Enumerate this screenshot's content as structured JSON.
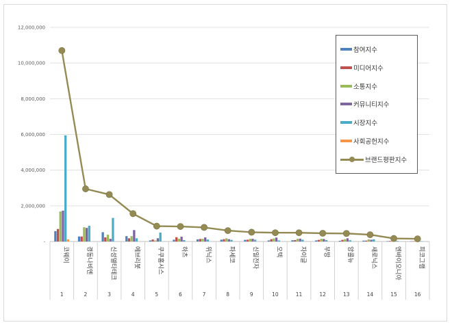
{
  "chart_data": {
    "type": "bar",
    "y_ticks": [
      "12,000,000",
      "10,000,000",
      "8,000,000",
      "6,000,000",
      "4,000,000",
      "2,000,000",
      "-"
    ],
    "ylim": [
      0,
      12000000
    ],
    "categories": [
      "코웨이",
      "경동나비엔",
      "신성델타테크",
      "에브리봇",
      "쿠쿠홈시스",
      "하츠",
      "위닉스",
      "파세코",
      "신일전자",
      "오텍",
      "자이글",
      "부방",
      "앙콜뉴",
      "새로닉스",
      "엔바이오니아",
      "피코그램"
    ],
    "index_labels": [
      "1",
      "2",
      "3",
      "4",
      "5",
      "6",
      "7",
      "8",
      "9",
      "10",
      "11",
      "12",
      "13",
      "14",
      "15",
      "16"
    ],
    "series": [
      {
        "name": "참여지수",
        "color": "#4F81BD",
        "values": [
          580000,
          280000,
          520000,
          300000,
          60000,
          100000,
          120000,
          100000,
          90000,
          60000,
          70000,
          60000,
          40000,
          50000,
          20000,
          15000
        ]
      },
      {
        "name": "미디어지수",
        "color": "#C0504D",
        "values": [
          700000,
          280000,
          230000,
          180000,
          110000,
          240000,
          140000,
          130000,
          100000,
          130000,
          80000,
          90000,
          90000,
          50000,
          30000,
          20000
        ]
      },
      {
        "name": "소통지수",
        "color": "#9BBB59",
        "values": [
          1680000,
          800000,
          380000,
          300000,
          60000,
          150000,
          150000,
          180000,
          150000,
          170000,
          150000,
          150000,
          130000,
          120000,
          60000,
          40000
        ]
      },
      {
        "name": "커뮤니티지수",
        "color": "#8064A2",
        "values": [
          1730000,
          760000,
          150000,
          640000,
          180000,
          270000,
          230000,
          130000,
          150000,
          220000,
          160000,
          140000,
          180000,
          100000,
          60000,
          50000
        ]
      },
      {
        "name": "시장지수",
        "color": "#4BACC6",
        "values": [
          5950000,
          880000,
          1320000,
          180000,
          500000,
          80000,
          110000,
          90000,
          100000,
          60000,
          100000,
          80000,
          70000,
          120000,
          30000,
          20000
        ]
      },
      {
        "name": "사회공헌지수",
        "color": "#F79646",
        "values": [
          120000,
          0,
          0,
          0,
          0,
          0,
          0,
          0,
          0,
          0,
          0,
          0,
          0,
          0,
          0,
          0
        ]
      }
    ],
    "line_series": {
      "name": "브랜드평판지수",
      "color": "#948A54",
      "values": [
        10700000,
        2950000,
        2630000,
        1560000,
        860000,
        840000,
        790000,
        610000,
        520000,
        490000,
        490000,
        460000,
        450000,
        380000,
        170000,
        150000
      ]
    },
    "legend_position": "top-right",
    "grid": true
  }
}
